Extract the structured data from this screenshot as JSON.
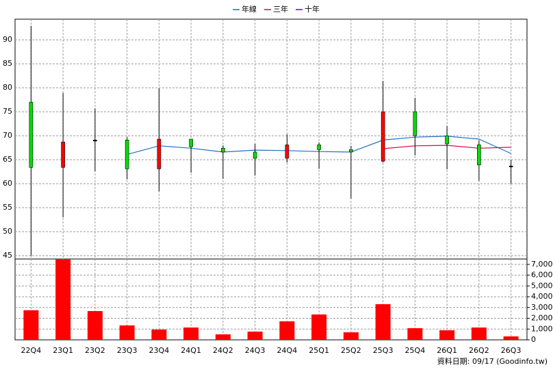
{
  "chart_data": {
    "type": "candlestick",
    "categories": [
      "22Q4",
      "23Q1",
      "23Q2",
      "23Q3",
      "23Q4",
      "24Q1",
      "24Q2",
      "24Q3",
      "24Q4",
      "25Q1",
      "25Q2",
      "25Q3",
      "25Q4",
      "26Q1",
      "26Q2",
      "26Q3"
    ],
    "open": [
      77,
      63.4,
      69.1,
      69.1,
      63.1,
      69.3,
      67.4,
      66.6,
      65.3,
      68.1,
      67.1,
      64.7,
      75,
      70,
      68.1,
      63.7
    ],
    "high": [
      92.9,
      78.9,
      75.7,
      69.7,
      79.9,
      69.3,
      68,
      68.3,
      70.3,
      68.6,
      67.9,
      81.4,
      77.9,
      72,
      69,
      65
    ],
    "low": [
      45,
      53,
      62.6,
      60.9,
      58.4,
      62.3,
      61,
      61.7,
      64.4,
      63.1,
      56.9,
      64.4,
      65.9,
      63,
      60.6,
      60
    ],
    "close": [
      63.4,
      68.7,
      69.1,
      63.1,
      69.3,
      67.7,
      66.6,
      65.3,
      68.1,
      67.1,
      66.6,
      75,
      70,
      68.3,
      63.9,
      63.7
    ],
    "up_color": "#ff0000",
    "down_color": "#00dd00",
    "flat_color": "#000000",
    "series": [
      {
        "name": "年線",
        "color": "#1f6fc0",
        "values": [
          null,
          null,
          null,
          66.1,
          67.9,
          67.4,
          66.6,
          67,
          66.9,
          66.7,
          66.6,
          69.1,
          69.7,
          69.9,
          69.3,
          66.3
        ]
      },
      {
        "name": "三年",
        "color": "#e0004a",
        "values": [
          null,
          null,
          null,
          null,
          null,
          null,
          null,
          null,
          null,
          null,
          null,
          67.3,
          67.9,
          68,
          67.4,
          67.6
        ]
      },
      {
        "name": "十年",
        "color": "#800080",
        "values": [
          null,
          null,
          null,
          null,
          null,
          null,
          null,
          null,
          null,
          null,
          null,
          null,
          null,
          null,
          null,
          null
        ]
      }
    ],
    "ylim": [
      44.3,
      94.3
    ],
    "yticks": [
      45,
      50,
      55,
      60,
      65,
      70,
      75,
      80,
      85,
      90
    ],
    "grid": true,
    "volume": {
      "color": "#ff0000",
      "values": [
        2750,
        7450,
        2670,
        1340,
        955,
        1145,
        510,
        765,
        1720,
        2355,
        700,
        3310,
        1080,
        890,
        1145,
        320
      ],
      "ylim": [
        0,
        7500
      ],
      "yticks": [
        0,
        {
          "value": 1000,
          "label": "1,000"
        },
        {
          "value": 2000,
          "label": "2,000"
        },
        {
          "value": 3000,
          "label": "3,000"
        },
        {
          "value": 4000,
          "label": "4,000"
        },
        {
          "value": 5000,
          "label": "5,000"
        },
        {
          "value": 6000,
          "label": "6,000"
        },
        {
          "value": 7000,
          "label": "7,000"
        }
      ]
    },
    "footer": "資料日期: 09/17 (Goodinfo.tw)"
  }
}
